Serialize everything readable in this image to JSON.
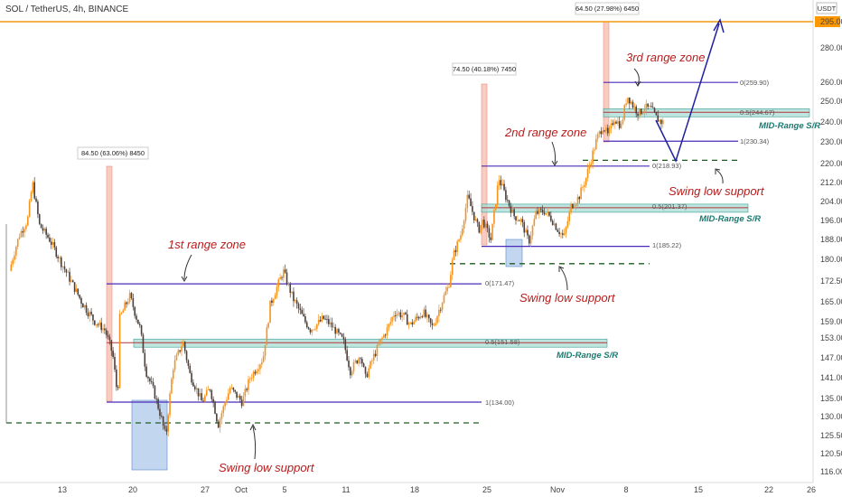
{
  "header": {
    "title": "SOL / TetherUS, 4h, BINANCE"
  },
  "chart_data": {
    "type": "candlestick",
    "title": "SOL / TetherUS, 4h, BINANCE",
    "y_axis": {
      "currency": "USDT",
      "ticks": [
        "295.00",
        "280.00",
        "260.00",
        "250.00",
        "240.00",
        "230.00",
        "220.00",
        "212.00",
        "204.00",
        "196.00",
        "188.00",
        "180.00",
        "172.50",
        "165.00",
        "159.00",
        "153.00",
        "147.00",
        "141.00",
        "135.00",
        "130.00",
        "125.50",
        "120.50",
        "116.00"
      ],
      "highlight": "295.00"
    },
    "x_axis": {
      "ticks": [
        "13",
        "20",
        "27",
        "Oct",
        "5",
        "11",
        "18",
        "25",
        "Nov",
        "8",
        "15",
        "22",
        "26"
      ]
    },
    "price_path": [
      {
        "d": 0,
        "p": 176
      },
      {
        "d": 1,
        "p": 190
      },
      {
        "d": 1.8,
        "p": 196
      },
      {
        "d": 2.3,
        "p": 212
      },
      {
        "d": 3,
        "p": 194
      },
      {
        "d": 4,
        "p": 188
      },
      {
        "d": 5,
        "p": 180
      },
      {
        "d": 6.2,
        "p": 172
      },
      {
        "d": 7.2,
        "p": 165
      },
      {
        "d": 8.5,
        "p": 159
      },
      {
        "d": 9.5,
        "p": 156
      },
      {
        "d": 10.3,
        "p": 148
      },
      {
        "d": 10.8,
        "p": 135
      },
      {
        "d": 11,
        "p": 160
      },
      {
        "d": 12,
        "p": 167
      },
      {
        "d": 13,
        "p": 157
      },
      {
        "d": 13.6,
        "p": 143
      },
      {
        "d": 14.4,
        "p": 137
      },
      {
        "d": 15,
        "p": 131
      },
      {
        "d": 15.6,
        "p": 125
      },
      {
        "d": 16.3,
        "p": 144
      },
      {
        "d": 17.3,
        "p": 152
      },
      {
        "d": 18,
        "p": 142
      },
      {
        "d": 19.2,
        "p": 134
      },
      {
        "d": 20,
        "p": 138
      },
      {
        "d": 20.8,
        "p": 128
      },
      {
        "d": 22,
        "p": 138
      },
      {
        "d": 23.2,
        "p": 134
      },
      {
        "d": 24,
        "p": 141
      },
      {
        "d": 25.3,
        "p": 147
      },
      {
        "d": 26,
        "p": 164
      },
      {
        "d": 27.3,
        "p": 176
      },
      {
        "d": 28.3,
        "p": 166
      },
      {
        "d": 29.3,
        "p": 160
      },
      {
        "d": 30,
        "p": 156
      },
      {
        "d": 31.3,
        "p": 160
      },
      {
        "d": 32,
        "p": 158
      },
      {
        "d": 33.3,
        "p": 152
      },
      {
        "d": 34,
        "p": 143
      },
      {
        "d": 35,
        "p": 148
      },
      {
        "d": 35.5,
        "p": 141
      },
      {
        "d": 36.4,
        "p": 148
      },
      {
        "d": 37.5,
        "p": 155
      },
      {
        "d": 38.4,
        "p": 162
      },
      {
        "d": 39.2,
        "p": 161
      },
      {
        "d": 40,
        "p": 158
      },
      {
        "d": 41.2,
        "p": 162
      },
      {
        "d": 42.2,
        "p": 157
      },
      {
        "d": 43,
        "p": 164
      },
      {
        "d": 43.8,
        "p": 171
      },
      {
        "d": 44.3,
        "p": 182
      },
      {
        "d": 45,
        "p": 190
      },
      {
        "d": 45.7,
        "p": 206
      },
      {
        "d": 46.3,
        "p": 198
      },
      {
        "d": 46.8,
        "p": 192
      },
      {
        "d": 47.2,
        "p": 196
      },
      {
        "d": 48,
        "p": 188
      },
      {
        "d": 48.8,
        "p": 214
      },
      {
        "d": 49.5,
        "p": 206
      },
      {
        "d": 50.3,
        "p": 198
      },
      {
        "d": 51,
        "p": 196
      },
      {
        "d": 51.8,
        "p": 187
      },
      {
        "d": 52.5,
        "p": 199
      },
      {
        "d": 53.3,
        "p": 200
      },
      {
        "d": 54,
        "p": 197
      },
      {
        "d": 54.7,
        "p": 192
      },
      {
        "d": 55.3,
        "p": 189
      },
      {
        "d": 56,
        "p": 202
      },
      {
        "d": 56.8,
        "p": 206
      },
      {
        "d": 57.5,
        "p": 214
      },
      {
        "d": 58,
        "p": 222
      },
      {
        "d": 58.6,
        "p": 232
      },
      {
        "d": 59.2,
        "p": 238
      },
      {
        "d": 59.7,
        "p": 233
      },
      {
        "d": 60.3,
        "p": 242
      },
      {
        "d": 61,
        "p": 238
      },
      {
        "d": 61.6,
        "p": 253
      },
      {
        "d": 62.3,
        "p": 247
      },
      {
        "d": 62.8,
        "p": 244
      },
      {
        "d": 63.3,
        "p": 247
      },
      {
        "d": 64,
        "p": 246
      },
      {
        "d": 64.5,
        "p": 242
      },
      {
        "d": 65,
        "p": 240
      }
    ],
    "ranges": [
      {
        "name": "1st range zone",
        "top": 171.47,
        "top_label": "0(171.47)",
        "mid": 151.58,
        "mid_label": "0.5(151.58)",
        "bottom": 134.0,
        "bottom_label": "1(134.00)",
        "mid_sr_label": "MID-Range S/R",
        "swing_low": 128.5,
        "swing_low_label": "Swing low support"
      },
      {
        "name": "2nd range zone",
        "top": 218.93,
        "top_label": "0(218.93)",
        "mid": 201.37,
        "mid_label": "0.5(201.37)",
        "bottom": 185.22,
        "bottom_label": "1(185.22)",
        "mid_sr_label": "MID-Range S/R",
        "swing_low": 178.5,
        "swing_low_label": "Swing low support"
      },
      {
        "name": "3rd range zone",
        "top": 259.9,
        "top_label": "0(259.90)",
        "mid": 244.67,
        "mid_label": "0.5(244.67)",
        "bottom": 230.34,
        "bottom_label": "1(230.34)",
        "mid_sr_label": "MID-Range S/R",
        "swing_low": 221.5
      }
    ],
    "measure_labels": [
      "84.50 (63.06%) 8450",
      "74.50 (40.18%) 7450",
      "64.50 (27.98%) 6450"
    ],
    "resistance": 295.0
  }
}
